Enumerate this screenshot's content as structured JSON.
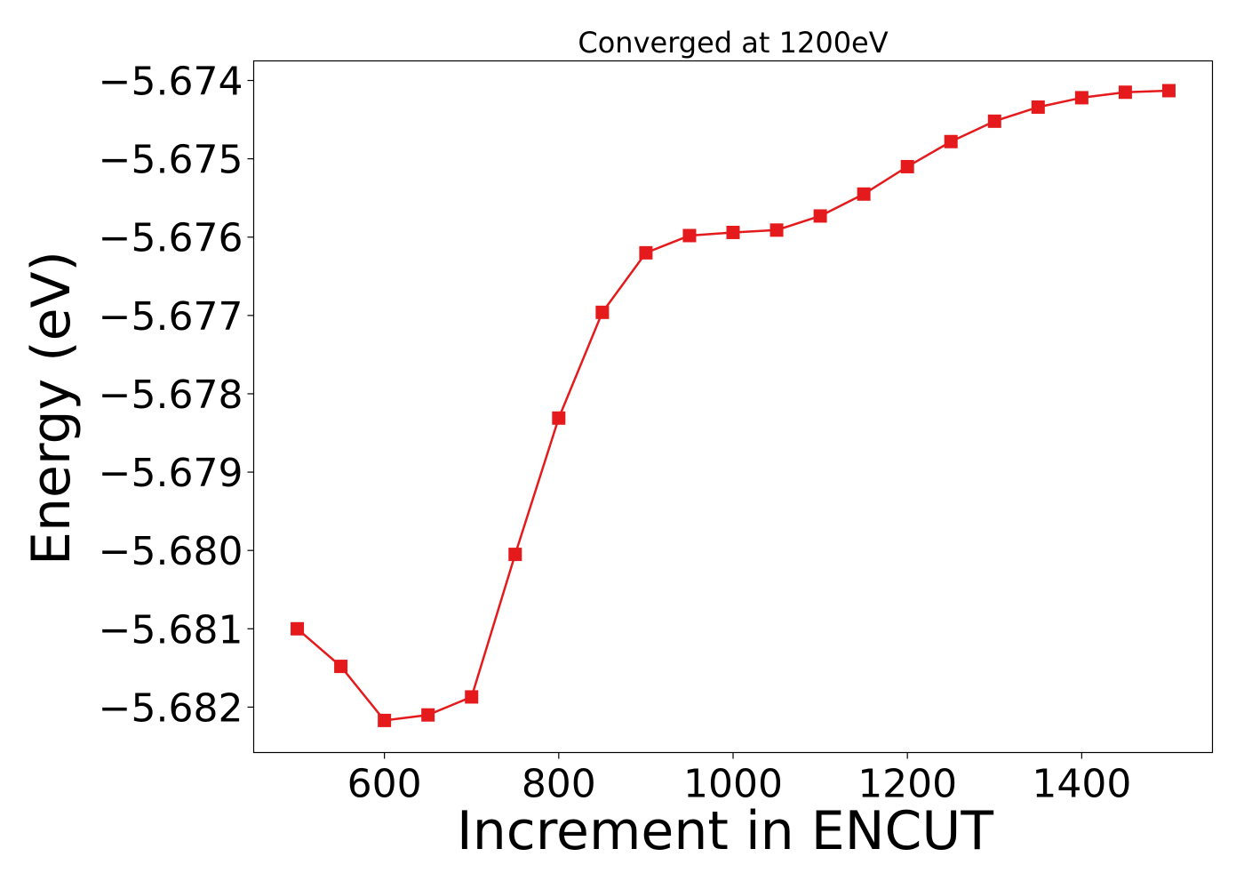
{
  "chart_data": {
    "type": "line",
    "title": "Converged at 1200eV",
    "xlabel": "Increment in ENCUT",
    "ylabel": "Energy (eV)",
    "xlim": [
      450,
      1550
    ],
    "ylim": [
      -5.68258,
      -5.67375
    ],
    "x_ticks": [
      600,
      800,
      1000,
      1200,
      1400
    ],
    "x_tick_labels": [
      "600",
      "800",
      "1000",
      "1200",
      "1400"
    ],
    "y_ticks": [
      -5.674,
      -5.675,
      -5.676,
      -5.677,
      -5.678,
      -5.679,
      -5.68,
      -5.681,
      -5.682
    ],
    "y_tick_labels": [
      "−5.674",
      "−5.675",
      "−5.676",
      "−5.677",
      "−5.678",
      "−5.679",
      "−5.680",
      "−5.681",
      "−5.682"
    ],
    "grid": false,
    "series": [
      {
        "color": "#e41a1c",
        "marker": "square",
        "x": [
          500,
          550,
          600,
          650,
          700,
          750,
          800,
          850,
          900,
          950,
          1000,
          1050,
          1100,
          1150,
          1200,
          1250,
          1300,
          1350,
          1400,
          1450,
          1500
        ],
        "y": [
          -5.681,
          -5.68148,
          -5.68217,
          -5.6821,
          -5.68187,
          -5.68005,
          -5.67831,
          -5.67696,
          -5.6762,
          -5.67598,
          -5.67594,
          -5.67591,
          -5.67573,
          -5.67545,
          -5.6751,
          -5.67478,
          -5.67452,
          -5.67434,
          -5.67422,
          -5.67415,
          -5.67413
        ]
      }
    ]
  }
}
